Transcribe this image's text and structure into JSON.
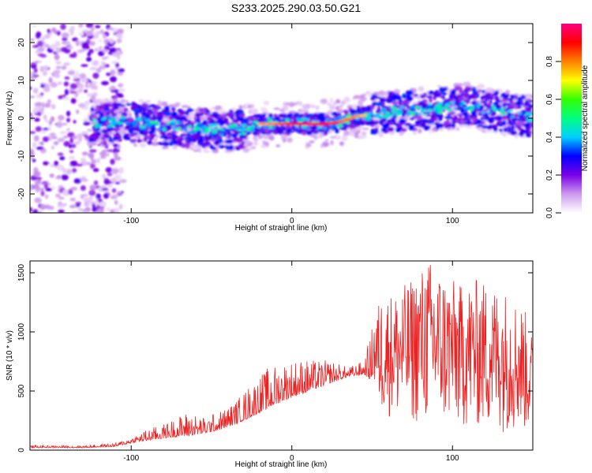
{
  "title": "S233.2025.290.03.50.G21",
  "chart_data": [
    {
      "type": "heatmap",
      "xlabel": "Height of straight line (km)",
      "ylabel": "Frequency (Hz)",
      "xlim": [
        -163,
        150
      ],
      "ylim": [
        -25,
        25
      ],
      "xticks": [
        -100,
        0,
        100
      ],
      "yticks": [
        -20,
        -10,
        0,
        10,
        20
      ],
      "colorbar": {
        "label": "Normalized spectral amplitude",
        "range": [
          0,
          1
        ],
        "ticks": [
          0.0,
          0.2,
          0.4,
          0.6,
          0.8
        ],
        "colors": [
          "#ffffff",
          "#cc99ee",
          "#7a00e6",
          "#0000ff",
          "#00cfff",
          "#00ff80",
          "#33ff00",
          "#ffff00",
          "#ff8000",
          "#ff0000",
          "#ff0080"
        ]
      },
      "ridge": {
        "x": [
          -125,
          -100,
          -75,
          -50,
          -30,
          -25,
          -20,
          -10,
          0,
          10,
          20,
          30,
          40,
          50,
          60,
          75,
          90,
          100,
          110,
          125,
          140,
          150
        ],
        "y": [
          -1,
          -1,
          -2,
          -3,
          -3,
          -2,
          -1.5,
          -1.5,
          -1.5,
          -1.5,
          -1.5,
          -1,
          0.5,
          1,
          1.5,
          2,
          2.5,
          3,
          3,
          2,
          1,
          0
        ],
        "peak_amplitude_range": [
          -20,
          45
        ],
        "noise_region_x": [
          -163,
          -105
        ]
      }
    },
    {
      "type": "line",
      "xlabel": "Height of straight line (km)",
      "ylabel": "SNR (10 * v/v)",
      "xlim": [
        -163,
        150
      ],
      "ylim": [
        0,
        1600
      ],
      "xticks": [
        -100,
        0,
        100
      ],
      "yticks": [
        0,
        500,
        1000,
        1500
      ],
      "color": "#ee2222",
      "envelope": {
        "x": [
          -163,
          -130,
          -110,
          -100,
          -90,
          -80,
          -65,
          -55,
          -45,
          -35,
          -25,
          -15,
          -5,
          5,
          15,
          25,
          35,
          45,
          50,
          55,
          65,
          75,
          85,
          95,
          105,
          115,
          125,
          135,
          145,
          150
        ],
        "base": [
          20,
          20,
          30,
          60,
          80,
          100,
          120,
          140,
          170,
          220,
          280,
          350,
          420,
          470,
          520,
          570,
          620,
          640,
          580,
          300,
          250,
          220,
          200,
          200,
          180,
          170,
          160,
          150,
          150,
          150
        ],
        "peak": [
          40,
          40,
          60,
          110,
          180,
          220,
          330,
          280,
          330,
          420,
          580,
          700,
          760,
          780,
          760,
          760,
          700,
          760,
          1050,
          1300,
          1350,
          1450,
          1620,
          1500,
          1400,
          1450,
          1400,
          1350,
          1200,
          950
        ]
      }
    }
  ]
}
